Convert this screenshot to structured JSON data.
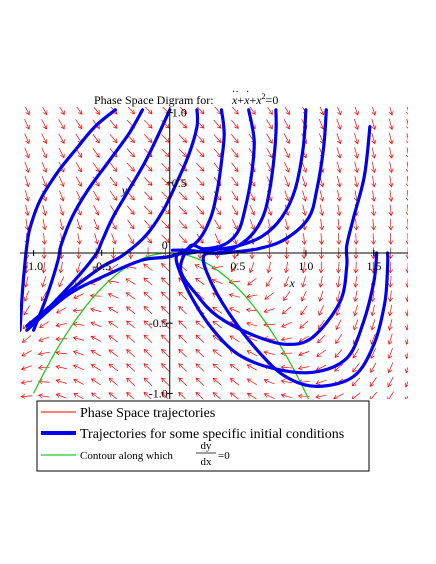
{
  "chart_data": {
    "type": "line",
    "title_prefix": "Phase Space Digram for:",
    "equation": {
      "term1": "x",
      "term1_dots": "··",
      "term2": "x",
      "term2_dot": "·",
      "term3": "x",
      "exponent": "2",
      "rhs": "=0",
      "plus": "+"
    },
    "xlabel": "x",
    "ylabel": "y",
    "xlim": [
      -1.1,
      1.75
    ],
    "ylim": [
      -1.04,
      1.04
    ],
    "x_ticks": [
      {
        "value": -1.0,
        "label": "-1.0"
      },
      {
        "value": -0.5,
        "label": "-0.5"
      },
      {
        "value": 0.5,
        "label": "0.5"
      },
      {
        "value": 1.0,
        "label": "1.0"
      },
      {
        "value": 1.5,
        "label": "1.5"
      }
    ],
    "origin_label": "0",
    "y_ticks": [
      {
        "value": 1.0,
        "label": "1.0"
      },
      {
        "value": 0.5,
        "label": "0.5"
      },
      {
        "value": -0.5,
        "label": "-0.5"
      },
      {
        "value": -1.0,
        "label": "-1.0"
      }
    ],
    "vector_field": {
      "system": "dx/dt = y, dy/dt = -y - x^2",
      "x_min": -1.05,
      "x_max": 1.75,
      "x_count": 23,
      "y_min": -1.02,
      "y_max": 1.02,
      "y_count": 21,
      "color": "#ff0000"
    },
    "series": [
      {
        "name": "Phase Space trajectories",
        "color": "#ff0000",
        "role": "field"
      },
      {
        "name": "Trajectories for some specific initial conditions",
        "color": "#0000ee",
        "role": "trajectories",
        "trajectories": [
          [
            [
              -0.4,
              1.02
            ],
            [
              -0.55,
              0.9
            ],
            [
              -0.68,
              0.75
            ],
            [
              -0.82,
              0.58
            ],
            [
              -0.95,
              0.38
            ],
            [
              -1.02,
              0.2
            ],
            [
              -1.05,
              0.05
            ],
            [
              -1.08,
              -0.25
            ],
            [
              -1.1,
              -0.55
            ]
          ],
          [
            [
              -0.2,
              1.02
            ],
            [
              -0.3,
              0.85
            ],
            [
              -0.45,
              0.65
            ],
            [
              -0.6,
              0.45
            ],
            [
              -0.72,
              0.25
            ],
            [
              -0.8,
              0.05
            ],
            [
              -0.82,
              -0.05
            ],
            [
              -0.9,
              -0.3
            ],
            [
              -1.0,
              -0.55
            ]
          ],
          [
            [
              0.0,
              1.02
            ],
            [
              -0.08,
              0.85
            ],
            [
              -0.18,
              0.65
            ],
            [
              -0.3,
              0.45
            ],
            [
              -0.42,
              0.25
            ],
            [
              -0.5,
              0.08
            ],
            [
              -0.55,
              -0.02
            ],
            [
              -0.75,
              -0.25
            ],
            [
              -1.0,
              -0.5
            ]
          ],
          [
            [
              0.2,
              1.02
            ],
            [
              0.2,
              0.9
            ],
            [
              0.14,
              0.7
            ],
            [
              0.05,
              0.5
            ],
            [
              -0.05,
              0.3
            ],
            [
              -0.18,
              0.12
            ],
            [
              -0.35,
              -0.02
            ],
            [
              -0.5,
              -0.1
            ],
            [
              -0.75,
              -0.28
            ],
            [
              -1.05,
              -0.52
            ]
          ],
          [
            [
              0.38,
              1.02
            ],
            [
              0.4,
              0.85
            ],
            [
              0.38,
              0.65
            ],
            [
              0.35,
              0.45
            ],
            [
              0.3,
              0.25
            ],
            [
              0.2,
              0.08
            ],
            [
              0.02,
              -0.02
            ],
            [
              -0.2,
              -0.05
            ],
            [
              -0.45,
              -0.15
            ],
            [
              -0.75,
              -0.3
            ],
            [
              -1.05,
              -0.55
            ]
          ],
          [
            [
              0.58,
              1.02
            ],
            [
              0.62,
              0.8
            ],
            [
              0.6,
              0.55
            ],
            [
              0.55,
              0.3
            ],
            [
              0.5,
              0.15
            ],
            [
              0.4,
              0.06
            ],
            [
              0.25,
              0.03
            ],
            [
              0.15,
              0.05
            ],
            [
              0.08,
              -0.12
            ],
            [
              0.2,
              -0.3
            ],
            [
              0.35,
              -0.45
            ],
            [
              0.6,
              -0.58
            ],
            [
              0.85,
              -0.65
            ],
            [
              1.05,
              -0.6
            ],
            [
              1.25,
              -0.35
            ],
            [
              1.3,
              -0.1
            ],
            [
              1.3,
              0.05
            ],
            [
              1.35,
              0.25
            ],
            [
              1.43,
              0.55
            ],
            [
              1.47,
              0.9
            ]
          ],
          [
            [
              0.78,
              1.02
            ],
            [
              0.78,
              0.85
            ],
            [
              0.75,
              0.55
            ],
            [
              0.7,
              0.3
            ],
            [
              0.62,
              0.15
            ],
            [
              0.5,
              0.05
            ],
            [
              0.35,
              0.0
            ],
            [
              0.22,
              0.01
            ],
            [
              0.12,
              0.02
            ],
            [
              0.02,
              0.02
            ]
          ],
          [
            [
              1.0,
              1.02
            ],
            [
              0.98,
              0.75
            ],
            [
              0.92,
              0.45
            ],
            [
              0.82,
              0.25
            ],
            [
              0.68,
              0.12
            ],
            [
              0.5,
              0.05
            ],
            [
              0.3,
              0.02
            ],
            [
              0.15,
              0.0
            ],
            [
              0.05,
              -0.02
            ],
            [
              0.08,
              -0.15
            ],
            [
              0.18,
              -0.35
            ],
            [
              0.32,
              -0.55
            ],
            [
              0.5,
              -0.72
            ],
            [
              0.75,
              -0.82
            ],
            [
              1.05,
              -0.85
            ],
            [
              1.3,
              -0.75
            ],
            [
              1.42,
              -0.5
            ],
            [
              1.5,
              -0.2
            ],
            [
              1.52,
              0.0
            ]
          ],
          [
            [
              1.15,
              1.02
            ],
            [
              1.13,
              0.75
            ],
            [
              1.08,
              0.45
            ],
            [
              1.02,
              0.25
            ],
            [
              0.85,
              0.1
            ],
            [
              0.65,
              0.03
            ],
            [
              0.4,
              0.0
            ],
            [
              0.25,
              -0.02
            ],
            [
              0.3,
              -0.2
            ],
            [
              0.45,
              -0.45
            ],
            [
              0.65,
              -0.7
            ],
            [
              0.85,
              -0.88
            ],
            [
              1.08,
              -0.95
            ],
            [
              1.35,
              -0.88
            ],
            [
              1.5,
              -0.65
            ],
            [
              1.58,
              -0.35
            ],
            [
              1.6,
              -0.1
            ],
            [
              1.6,
              0.0
            ]
          ]
        ]
      },
      {
        "name": "Contour along which",
        "color": "#22cc22",
        "role": "contour",
        "fraction_num": "dy",
        "fraction_den": "dx",
        "fraction_rhs": "=0",
        "x_from": -1.0,
        "x_to": 1.05
      }
    ],
    "legend": {
      "placement": "bottom",
      "box": true
    }
  }
}
